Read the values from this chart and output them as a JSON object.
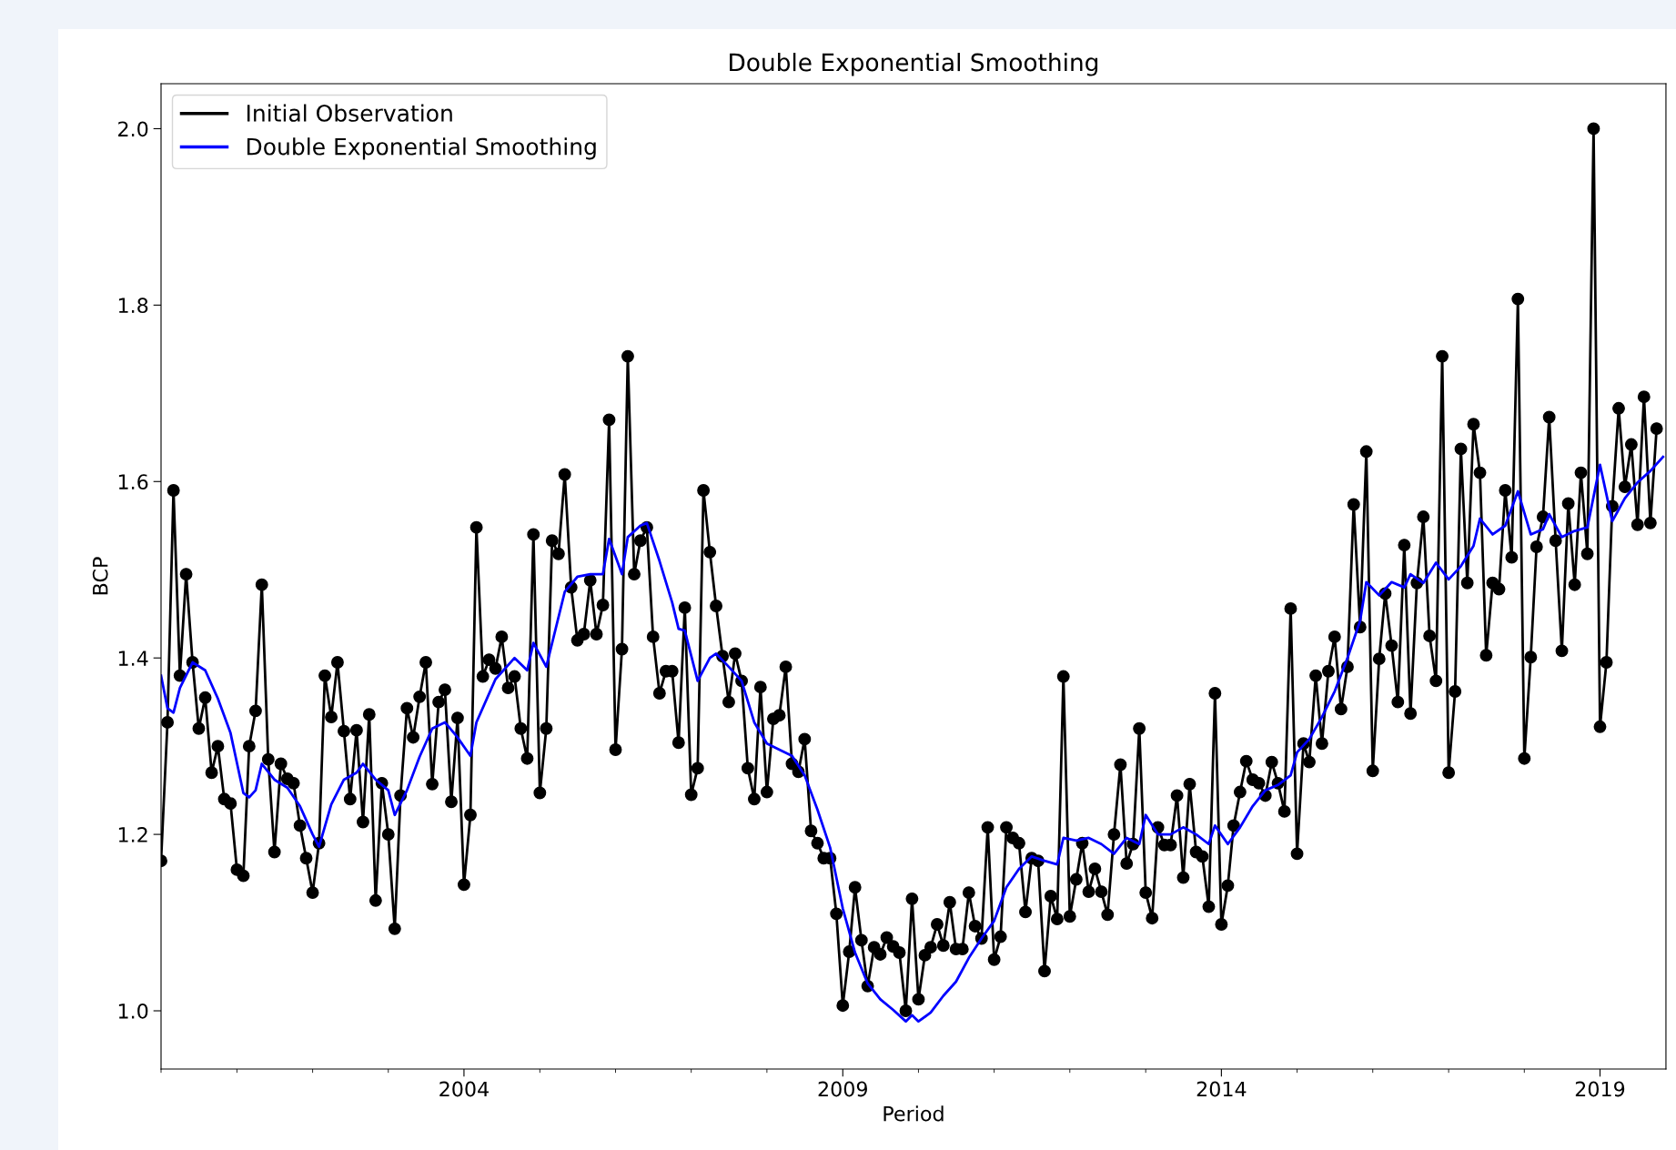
{
  "chart_data": {
    "type": "line",
    "title": "Double Exponential Smoothing",
    "xlabel": "Period",
    "ylabel": "BCP",
    "xlim": [
      "2000-01-01",
      "2019-11-15"
    ],
    "ylim": [
      0.934,
      2.051
    ],
    "xticks": [
      {
        "value": "2000",
        "label": null
      },
      {
        "value": "2001",
        "label": null
      },
      {
        "value": "2002",
        "label": null
      },
      {
        "value": "2003",
        "label": null
      },
      {
        "value": "2004",
        "label": "2004"
      },
      {
        "value": "2005",
        "label": null
      },
      {
        "value": "2006",
        "label": null
      },
      {
        "value": "2007",
        "label": null
      },
      {
        "value": "2008",
        "label": null
      },
      {
        "value": "2009",
        "label": "2009"
      },
      {
        "value": "2010",
        "label": null
      },
      {
        "value": "2011",
        "label": null
      },
      {
        "value": "2012",
        "label": null
      },
      {
        "value": "2013",
        "label": null
      },
      {
        "value": "2014",
        "label": "2014"
      },
      {
        "value": "2015",
        "label": null
      },
      {
        "value": "2016",
        "label": null
      },
      {
        "value": "2017",
        "label": null
      },
      {
        "value": "2018",
        "label": null
      },
      {
        "value": "2019",
        "label": "2019"
      }
    ],
    "yticks": [
      {
        "value": 1.0,
        "label": "1.0"
      },
      1.2,
      1.4,
      1.6,
      1.8,
      {
        "value": 2.0,
        "label": "2.0"
      }
    ],
    "grid": false,
    "legend": "top left",
    "line_style": "solid",
    "series": [
      {
        "name": "Initial Observation",
        "color": "#000000",
        "marker": "circle",
        "x": [
          "2000-01",
          "2000-02",
          "2000-03",
          "2000-04",
          "2000-05",
          "2000-06",
          "2000-07",
          "2000-08",
          "2000-09",
          "2000-10",
          "2000-11",
          "2000-12",
          "2001-01",
          "2001-02",
          "2001-03",
          "2001-04",
          "2001-05",
          "2001-06",
          "2001-07",
          "2001-08",
          "2001-09",
          "2001-10",
          "2001-11",
          "2001-12",
          "2002-01",
          "2002-02",
          "2002-03",
          "2002-04",
          "2002-05",
          "2002-06",
          "2002-07",
          "2002-08",
          "2002-09",
          "2002-10",
          "2002-11",
          "2002-12",
          "2003-01",
          "2003-02",
          "2003-03",
          "2003-04",
          "2003-05",
          "2003-06",
          "2003-07",
          "2003-08",
          "2003-09",
          "2003-10",
          "2003-11",
          "2003-12",
          "2004-01",
          "2004-02",
          "2004-03",
          "2004-04",
          "2004-05",
          "2004-06",
          "2004-07",
          "2004-08",
          "2004-09",
          "2004-10",
          "2004-11",
          "2004-12",
          "2005-01",
          "2005-02",
          "2005-03",
          "2005-04",
          "2005-05",
          "2005-06",
          "2005-07",
          "2005-08",
          "2005-09",
          "2005-10",
          "2005-11",
          "2005-12",
          "2006-01",
          "2006-02",
          "2006-03",
          "2006-04",
          "2006-05",
          "2006-06",
          "2006-07",
          "2006-08",
          "2006-09",
          "2006-10",
          "2006-11",
          "2006-12",
          "2007-01",
          "2007-02",
          "2007-03",
          "2007-04",
          "2007-05",
          "2007-06",
          "2007-07",
          "2007-08",
          "2007-09",
          "2007-10",
          "2007-11",
          "2007-12",
          "2008-01",
          "2008-02",
          "2008-03",
          "2008-04",
          "2008-05",
          "2008-06",
          "2008-07",
          "2008-08",
          "2008-09",
          "2008-10",
          "2008-11",
          "2008-12",
          "2009-01",
          "2009-02",
          "2009-03",
          "2009-04",
          "2009-05",
          "2009-06",
          "2009-07",
          "2009-08",
          "2009-09",
          "2009-10",
          "2009-11",
          "2009-12",
          "2010-01",
          "2010-02",
          "2010-03",
          "2010-04",
          "2010-05",
          "2010-06",
          "2010-07",
          "2010-08",
          "2010-09",
          "2010-10",
          "2010-11",
          "2010-12",
          "2011-01",
          "2011-02",
          "2011-03",
          "2011-04",
          "2011-05",
          "2011-06",
          "2011-07",
          "2011-08",
          "2011-09",
          "2011-10",
          "2011-11",
          "2011-12",
          "2012-01",
          "2012-02",
          "2012-03",
          "2012-04",
          "2012-05",
          "2012-06",
          "2012-07",
          "2012-08",
          "2012-09",
          "2012-10",
          "2012-11",
          "2012-12",
          "2013-01",
          "2013-02",
          "2013-03",
          "2013-04",
          "2013-05",
          "2013-06",
          "2013-07",
          "2013-08",
          "2013-09",
          "2013-10",
          "2013-11",
          "2013-12",
          "2014-01",
          "2014-02",
          "2014-03",
          "2014-04",
          "2014-05",
          "2014-06",
          "2014-07",
          "2014-08",
          "2014-09",
          "2014-10",
          "2014-11",
          "2014-12",
          "2015-01",
          "2015-02",
          "2015-03",
          "2015-04",
          "2015-05",
          "2015-06",
          "2015-07",
          "2015-08",
          "2015-09",
          "2015-10",
          "2015-11",
          "2015-12",
          "2016-01",
          "2016-02",
          "2016-03",
          "2016-04",
          "2016-05",
          "2016-06",
          "2016-07",
          "2016-08",
          "2016-09",
          "2016-10",
          "2016-11",
          "2016-12",
          "2017-01",
          "2017-02",
          "2017-03",
          "2017-04",
          "2017-05",
          "2017-06",
          "2017-07",
          "2017-08",
          "2017-09",
          "2017-10",
          "2017-11",
          "2017-12",
          "2018-01",
          "2018-02",
          "2018-03",
          "2018-04",
          "2018-05",
          "2018-06",
          "2018-07",
          "2018-08",
          "2018-09",
          "2018-10",
          "2018-11",
          "2018-12",
          "2019-01",
          "2019-02",
          "2019-03",
          "2019-04",
          "2019-05",
          "2019-06",
          "2019-07",
          "2019-08",
          "2019-09",
          "2019-10"
        ],
        "values": [
          1.17,
          1.327,
          1.59,
          1.38,
          1.495,
          1.395,
          1.32,
          1.355,
          1.27,
          1.3,
          1.24,
          1.235,
          1.16,
          1.153,
          1.3,
          1.34,
          1.483,
          1.285,
          1.18,
          1.28,
          1.263,
          1.258,
          1.21,
          1.173,
          1.134,
          1.19,
          1.38,
          1.333,
          1.395,
          1.317,
          1.24,
          1.318,
          1.214,
          1.336,
          1.125,
          1.258,
          1.2,
          1.093,
          1.244,
          1.343,
          1.31,
          1.356,
          1.395,
          1.257,
          1.35,
          1.364,
          1.237,
          1.332,
          1.143,
          1.222,
          1.548,
          1.379,
          1.398,
          1.388,
          1.424,
          1.366,
          1.379,
          1.32,
          1.286,
          1.54,
          1.247,
          1.32,
          1.533,
          1.518,
          1.608,
          1.48,
          1.42,
          1.427,
          1.488,
          1.427,
          1.46,
          1.67,
          1.296,
          1.41,
          1.742,
          1.495,
          1.533,
          1.548,
          1.424,
          1.36,
          1.385,
          1.385,
          1.304,
          1.457,
          1.245,
          1.275,
          1.59,
          1.52,
          1.459,
          1.402,
          1.35,
          1.405,
          1.374,
          1.275,
          1.24,
          1.367,
          1.248,
          1.331,
          1.335,
          1.39,
          1.28,
          1.271,
          1.308,
          1.204,
          1.19,
          1.173,
          1.173,
          1.11,
          1.006,
          1.067,
          1.14,
          1.08,
          1.028,
          1.072,
          1.064,
          1.083,
          1.073,
          1.066,
          1.0,
          1.127,
          1.013,
          1.063,
          1.072,
          1.098,
          1.074,
          1.123,
          1.07,
          1.07,
          1.134,
          1.096,
          1.082,
          1.208,
          1.058,
          1.084,
          1.208,
          1.196,
          1.19,
          1.112,
          1.173,
          1.17,
          1.045,
          1.13,
          1.104,
          1.379,
          1.107,
          1.149,
          1.19,
          1.135,
          1.161,
          1.135,
          1.109,
          1.2,
          1.279,
          1.167,
          1.189,
          1.32,
          1.134,
          1.105,
          1.208,
          1.188,
          1.188,
          1.244,
          1.151,
          1.257,
          1.18,
          1.175,
          1.118,
          1.36,
          1.098,
          1.142,
          1.21,
          1.248,
          1.283,
          1.262,
          1.258,
          1.244,
          1.282,
          1.258,
          1.226,
          1.456,
          1.178,
          1.303,
          1.282,
          1.38,
          1.303,
          1.385,
          1.424,
          1.342,
          1.39,
          1.574,
          1.435,
          1.634,
          1.272,
          1.399,
          1.473,
          1.414,
          1.35,
          1.528,
          1.337,
          1.485,
          1.56,
          1.425,
          1.374,
          1.742,
          1.27,
          1.362,
          1.637,
          1.485,
          1.665,
          1.61,
          1.403,
          1.485,
          1.478,
          1.59,
          1.514,
          1.807,
          1.286,
          1.401,
          1.526,
          1.56,
          1.673,
          1.533,
          1.408,
          1.575,
          1.483,
          1.61,
          1.518,
          2.0,
          1.322,
          1.395,
          1.572,
          1.683,
          1.594,
          1.642,
          1.551,
          1.696,
          1.553,
          1.66
        ]
      },
      {
        "name": "Double Exponential Smoothing",
        "color": "#0000ff",
        "marker": "none",
        "x": [
          "2000-01",
          "2000-02",
          "2000-03",
          "2000-04",
          "2000-06",
          "2000-08",
          "2000-10",
          "2000-12",
          "2001-02",
          "2001-03",
          "2001-04",
          "2001-05",
          "2001-07",
          "2001-09",
          "2001-11",
          "2002-01",
          "2002-02",
          "2002-04",
          "2002-06",
          "2002-08",
          "2002-09",
          "2002-11",
          "2003-01",
          "2003-02",
          "2003-04",
          "2003-06",
          "2003-08",
          "2003-10",
          "2003-12",
          "2004-02",
          "2004-03",
          "2004-06",
          "2004-09",
          "2004-11",
          "2004-12",
          "2005-02",
          "2005-05",
          "2005-07",
          "2005-09",
          "2005-11",
          "2005-12",
          "2006-02",
          "2006-03",
          "2006-05",
          "2006-06",
          "2006-08",
          "2006-10",
          "2006-11",
          "2006-12",
          "2007-02",
          "2007-04",
          "2007-05",
          "2007-07",
          "2007-09",
          "2007-11",
          "2008-01",
          "2008-03",
          "2008-05",
          "2008-07",
          "2008-09",
          "2008-11",
          "2009-01",
          "2009-03",
          "2009-05",
          "2009-07",
          "2009-09",
          "2009-11",
          "2009-12",
          "2010-01",
          "2010-03",
          "2010-05",
          "2010-07",
          "2010-09",
          "2010-11",
          "2011-01",
          "2011-03",
          "2011-05",
          "2011-07",
          "2011-09",
          "2011-11",
          "2011-12",
          "2012-02",
          "2012-04",
          "2012-06",
          "2012-08",
          "2012-10",
          "2012-12",
          "2013-01",
          "2013-03",
          "2013-05",
          "2013-07",
          "2013-09",
          "2013-11",
          "2013-12",
          "2014-02",
          "2014-04",
          "2014-06",
          "2014-08",
          "2014-10",
          "2014-12",
          "2015-01",
          "2015-03",
          "2015-05",
          "2015-07",
          "2015-09",
          "2015-11",
          "2015-12",
          "2016-02",
          "2016-04",
          "2016-06",
          "2016-07",
          "2016-09",
          "2016-11",
          "2017-01",
          "2017-03",
          "2017-05",
          "2017-06",
          "2017-08",
          "2017-10",
          "2017-12",
          "2018-02",
          "2018-04",
          "2018-05",
          "2018-07",
          "2018-09",
          "2018-11",
          "2019-01",
          "2019-03",
          "2019-05",
          "2019-07",
          "2019-09",
          "2019-11"
        ],
        "values": [
          1.38,
          1.343,
          1.338,
          1.366,
          1.395,
          1.386,
          1.354,
          1.315,
          1.247,
          1.242,
          1.25,
          1.28,
          1.262,
          1.253,
          1.232,
          1.2,
          1.186,
          1.234,
          1.262,
          1.27,
          1.28,
          1.262,
          1.25,
          1.222,
          1.25,
          1.288,
          1.32,
          1.327,
          1.31,
          1.289,
          1.327,
          1.376,
          1.4,
          1.386,
          1.417,
          1.39,
          1.475,
          1.492,
          1.495,
          1.495,
          1.535,
          1.495,
          1.537,
          1.55,
          1.553,
          1.51,
          1.463,
          1.433,
          1.431,
          1.374,
          1.4,
          1.405,
          1.39,
          1.374,
          1.327,
          1.303,
          1.296,
          1.289,
          1.267,
          1.228,
          1.185,
          1.116,
          1.066,
          1.031,
          1.013,
          1.001,
          0.988,
          0.995,
          0.988,
          0.998,
          1.017,
          1.033,
          1.06,
          1.082,
          1.102,
          1.14,
          1.161,
          1.175,
          1.17,
          1.166,
          1.196,
          1.193,
          1.196,
          1.189,
          1.178,
          1.196,
          1.189,
          1.222,
          1.2,
          1.2,
          1.208,
          1.2,
          1.189,
          1.21,
          1.189,
          1.208,
          1.232,
          1.25,
          1.256,
          1.267,
          1.293,
          1.308,
          1.333,
          1.362,
          1.4,
          1.442,
          1.486,
          1.471,
          1.486,
          1.48,
          1.495,
          1.485,
          1.508,
          1.489,
          1.504,
          1.527,
          1.558,
          1.54,
          1.55,
          1.589,
          1.54,
          1.546,
          1.563,
          1.537,
          1.544,
          1.548,
          1.619,
          1.555,
          1.581,
          1.599,
          1.612,
          1.628
        ]
      }
    ]
  }
}
